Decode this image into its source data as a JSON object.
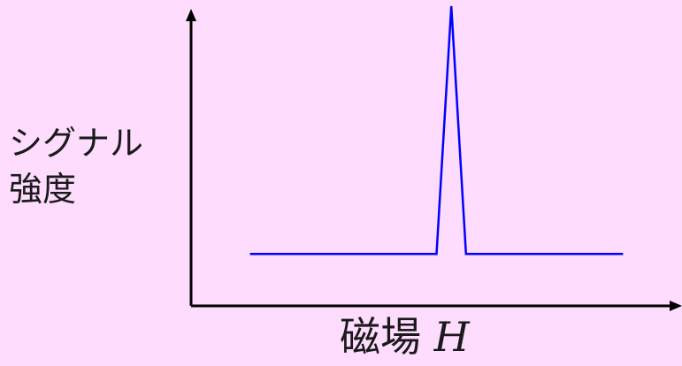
{
  "chart_data": {
    "type": "line",
    "title": "",
    "xlabel_text": "磁場",
    "xlabel_variable": "H",
    "ylabel_lines": [
      "シグナル",
      "強度"
    ],
    "grid": false,
    "legend": "none",
    "axis_ticks": false,
    "series": [
      {
        "color": "#0000ff",
        "x": [
          0.12,
          0.5,
          0.53,
          0.56,
          0.59,
          0.88
        ],
        "y": [
          0.17,
          0.17,
          0.98,
          0.17,
          0.17,
          0.17
        ]
      }
    ],
    "xlim": [
      0,
      1
    ],
    "ylim": [
      0,
      1
    ]
  }
}
